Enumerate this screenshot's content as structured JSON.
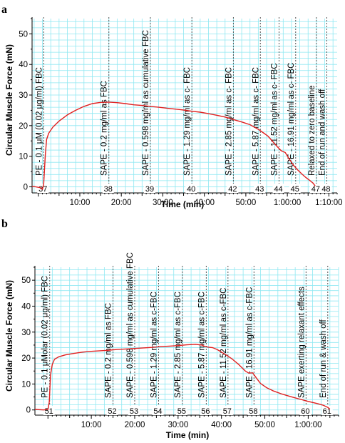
{
  "figure": {
    "accent_grid_color": "#8fe8f2",
    "trace_color": "#e02020"
  },
  "chart_data": [
    {
      "panel": "a",
      "type": "line",
      "xlabel": "Time (min)",
      "ylabel": "Circular Muscle Force (mN)",
      "xlim": [
        -1.5,
        72
      ],
      "ylim": [
        -2,
        55
      ],
      "x_tick_labels": [
        {
          "x": 10,
          "label": "10:00"
        },
        {
          "x": 20,
          "label": "20:00"
        },
        {
          "x": 30,
          "label": "30:00"
        },
        {
          "x": 40,
          "label": "40:00"
        },
        {
          "x": 50,
          "label": "50:00"
        },
        {
          "x": 60,
          "label": "1:00:00"
        },
        {
          "x": 70,
          "label": "1:10:00"
        }
      ],
      "y_tick_labels": [
        {
          "y": 0,
          "label": "0"
        },
        {
          "y": 10,
          "label": "10"
        },
        {
          "y": 20,
          "label": "20"
        },
        {
          "y": 30,
          "label": "30"
        },
        {
          "y": 40,
          "label": "40"
        },
        {
          "y": 50,
          "label": "50"
        }
      ],
      "grid": true,
      "series": [
        {
          "points": [
            [
              -1.5,
              0.2
            ],
            [
              0.5,
              -0.3
            ],
            [
              1.0,
              -0.8
            ],
            [
              1.3,
              1.0
            ],
            [
              1.7,
              10.5
            ],
            [
              2.0,
              15.5
            ],
            [
              2.5,
              17.5
            ],
            [
              3.5,
              19.5
            ],
            [
              5,
              21.5
            ],
            [
              7,
              23.5
            ],
            [
              9,
              25.0
            ],
            [
              11,
              26.3
            ],
            [
              13,
              27.2
            ],
            [
              15,
              27.6
            ],
            [
              17,
              27.7
            ],
            [
              19,
              27.5
            ],
            [
              21,
              27.2
            ],
            [
              23,
              26.8
            ],
            [
              25,
              26.6
            ],
            [
              27,
              26.3
            ],
            [
              29,
              26.0
            ],
            [
              31,
              25.7
            ],
            [
              33,
              25.4
            ],
            [
              35,
              25.1
            ],
            [
              37,
              24.7
            ],
            [
              39,
              24.4
            ],
            [
              41,
              23.9
            ],
            [
              43,
              23.4
            ],
            [
              45,
              22.8
            ],
            [
              47,
              22.0
            ],
            [
              49,
              21.2
            ],
            [
              51,
              20.3
            ],
            [
              53,
              18.8
            ],
            [
              54.5,
              17.4
            ],
            [
              55.3,
              16.6
            ],
            [
              56.5,
              14.8
            ],
            [
              57.5,
              13.2
            ],
            [
              58.5,
              11.8
            ],
            [
              59.5,
              11.2
            ],
            [
              60.5,
              9.0
            ],
            [
              61.5,
              7.0
            ],
            [
              62.5,
              5.5
            ],
            [
              63.5,
              4.2
            ],
            [
              64.5,
              3.0
            ],
            [
              65.5,
              2.0
            ],
            [
              66.2,
              1.2
            ],
            [
              66.7,
              0.3
            ]
          ]
        }
      ],
      "events": [
        {
          "x": 1.3,
          "number": "37",
          "label": "PE - 0.1 μM (0.02 μg/ml) FBC"
        },
        {
          "x": 17,
          "number": "38",
          "label": "SAPE - 0.2 mg/ml as FBC"
        },
        {
          "x": 27,
          "number": "39",
          "label": "SAPE - 0.598 mg/ml as cumulative FBC"
        },
        {
          "x": 37,
          "number": "40",
          "label": "SAPE - 1.29 mg/ml as c- FBC"
        },
        {
          "x": 47,
          "number": "42",
          "label": "SAPE - 2.85 mg/ml as c- FBC"
        },
        {
          "x": 53.5,
          "number": "43",
          "label": "SAPE - 5.87 mg/ml as c- FBC"
        },
        {
          "x": 58,
          "number": "44",
          "label": "SAPE - 11.52 mg/ml as c- FBC"
        },
        {
          "x": 62,
          "number": "45",
          "label": "SAPE - 16.91 mg/ml as c- FBC"
        },
        {
          "x": 67,
          "number": "47",
          "label": "Relaxed to zero baseline"
        },
        {
          "x": 69.5,
          "number": "48",
          "label": "End of run and wash off"
        }
      ]
    },
    {
      "panel": "b",
      "type": "line",
      "xlabel": "Time (min)",
      "ylabel": "Circular Muscle Force (mN)",
      "xlim": [
        -3,
        67
      ],
      "ylim": [
        -2,
        55
      ],
      "x_tick_labels": [
        {
          "x": 10,
          "label": "10:00"
        },
        {
          "x": 20,
          "label": "20:00"
        },
        {
          "x": 30,
          "label": "30:00"
        },
        {
          "x": 40,
          "label": "40:00"
        },
        {
          "x": 50,
          "label": "50:00"
        },
        {
          "x": 60,
          "label": "1:00:00"
        }
      ],
      "y_tick_labels": [
        {
          "y": 0,
          "label": "0"
        },
        {
          "y": 10,
          "label": "10"
        },
        {
          "y": 20,
          "label": "20"
        },
        {
          "y": 30,
          "label": "30"
        },
        {
          "y": 40,
          "label": "40"
        },
        {
          "y": 50,
          "label": "50"
        }
      ],
      "grid": true,
      "series": [
        {
          "points": [
            [
              -3,
              0.2
            ],
            [
              -1,
              0.0
            ],
            [
              0.0,
              0.2
            ],
            [
              0.3,
              3.0
            ],
            [
              0.6,
              13.5
            ],
            [
              1.0,
              17.5
            ],
            [
              1.5,
              19.5
            ],
            [
              2.5,
              20.5
            ],
            [
              4,
              21.2
            ],
            [
              6,
              21.8
            ],
            [
              8,
              22.3
            ],
            [
              10,
              22.6
            ],
            [
              12,
              22.8
            ],
            [
              14,
              23.0
            ],
            [
              16,
              23.3
            ],
            [
              18,
              23.5
            ],
            [
              20,
              23.7
            ],
            [
              22,
              23.9
            ],
            [
              24,
              24.1
            ],
            [
              26,
              24.4
            ],
            [
              28,
              24.6
            ],
            [
              30,
              24.8
            ],
            [
              32,
              25.1
            ],
            [
              34,
              25.3
            ],
            [
              35.5,
              25.0
            ],
            [
              36,
              24.6
            ],
            [
              37,
              24.2
            ],
            [
              38,
              24.0
            ],
            [
              39,
              23.3
            ],
            [
              40,
              22.3
            ],
            [
              41,
              21.3
            ],
            [
              42.5,
              19.6
            ],
            [
              44,
              17.5
            ],
            [
              45.5,
              15.0
            ],
            [
              46.3,
              14.2
            ],
            [
              47.2,
              14.3
            ],
            [
              48,
              12.4
            ],
            [
              49,
              10.2
            ],
            [
              50.5,
              8.5
            ],
            [
              52,
              7.3
            ],
            [
              54,
              6.1
            ],
            [
              56,
              5.1
            ],
            [
              58,
              4.2
            ],
            [
              60,
              3.3
            ],
            [
              62,
              2.5
            ],
            [
              63.5,
              1.8
            ],
            [
              64.5,
              1.0
            ],
            [
              65,
              0.3
            ]
          ]
        }
      ],
      "events": [
        {
          "x": 0.4,
          "number": "51",
          "label": "PE - 0.1 μMolar (0.02 μg/ml) FBC"
        },
        {
          "x": 15,
          "number": "52",
          "label": "SAPE - 0.2 mg/ml as FBC"
        },
        {
          "x": 20,
          "number": "53",
          "label": "SAPE - 0.598 mg/ml as cumulative FBC"
        },
        {
          "x": 25.5,
          "number": "54",
          "label": "SAPE - 1.29 mg/ml as c-FBC"
        },
        {
          "x": 31,
          "number": "55",
          "label": "SAPE - 2.85 mg/ml as c-FBC"
        },
        {
          "x": 36.5,
          "number": "56",
          "label": "SAPE - 5.87 mg/ml as c-FBC"
        },
        {
          "x": 41.5,
          "number": "57",
          "label": "SAPE - 11.52 mg/ml as c-FBC"
        },
        {
          "x": 47.5,
          "number": "58",
          "label": "SAPE - 16.91 mg/ml as c-FBC"
        },
        {
          "x": 59.5,
          "number": "60",
          "label": "SAPE exerting relaxant effects"
        },
        {
          "x": 64.5,
          "number": "61",
          "label": "End of run & wash off"
        }
      ]
    }
  ]
}
